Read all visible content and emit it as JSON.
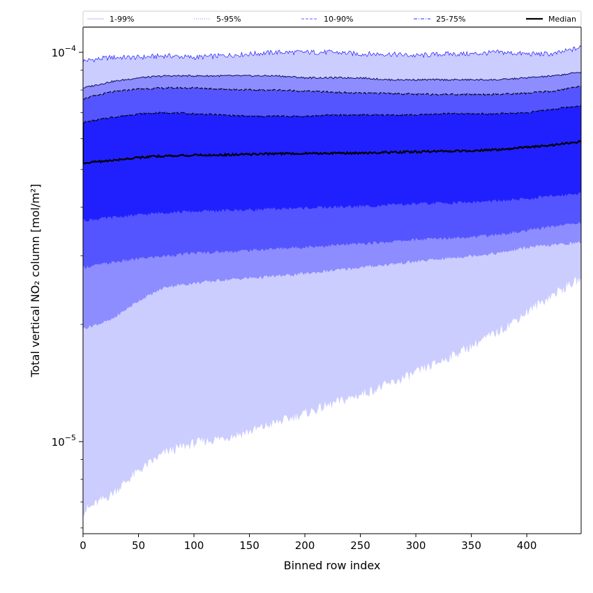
{
  "chart_data": {
    "type": "area",
    "title": "",
    "xlabel": "Binned row index",
    "ylabel": "Total vertical NO₂ column [mol/m²]",
    "yscale": "log",
    "xlim": [
      0,
      449
    ],
    "ylim": [
      5.8e-06,
      0.000116
    ],
    "x_ticks": [
      0,
      50,
      100,
      150,
      200,
      250,
      300,
      350,
      400
    ],
    "x_tick_labels": [
      "0",
      "50",
      "100",
      "150",
      "200",
      "250",
      "300",
      "350",
      "400"
    ],
    "y_ticks": [
      1e-05,
      0.0001
    ],
    "y_tick_labels": [
      {
        "base": "10",
        "exp": "−5"
      },
      {
        "base": "10",
        "exp": "−4"
      }
    ],
    "x": [
      0,
      25,
      50,
      75,
      100,
      125,
      150,
      175,
      200,
      225,
      250,
      275,
      300,
      325,
      350,
      375,
      400,
      425,
      449
    ],
    "bands": [
      {
        "name": "1-99%",
        "fill": "#cccdff",
        "line_color": "#1a1aff",
        "lower": [
          6.6e-06,
          7.3e-06,
          8.4e-06,
          9.4e-06,
          9.9e-06,
          1.02e-05,
          1.06e-05,
          1.12e-05,
          1.18e-05,
          1.25e-05,
          1.32e-05,
          1.4e-05,
          1.5e-05,
          1.62e-05,
          1.76e-05,
          1.92e-05,
          2.15e-05,
          2.4e-05,
          2.62e-05
        ],
        "upper": [
          9.5e-05,
          9.7e-05,
          9.7e-05,
          9.8e-05,
          9.7e-05,
          9.8e-05,
          9.9e-05,
          0.0001,
          0.0001,
          0.0001,
          9.9e-05,
          9.9e-05,
          9.8e-05,
          9.9e-05,
          9.9e-05,
          0.0001,
          9.9e-05,
          9.9e-05,
          0.000103
        ]
      },
      {
        "name": "5-95%",
        "fill": "#8d8dff",
        "line_color": "#1a1a66",
        "lower": [
          1.95e-05,
          2.05e-05,
          2.3e-05,
          2.5e-05,
          2.55e-05,
          2.6e-05,
          2.63e-05,
          2.66e-05,
          2.7e-05,
          2.75e-05,
          2.8e-05,
          2.85e-05,
          2.9e-05,
          2.95e-05,
          3e-05,
          3.05e-05,
          3.15e-05,
          3.2e-05,
          3.25e-05
        ],
        "upper": [
          8.1e-05,
          8.4e-05,
          8.6e-05,
          8.7e-05,
          8.7e-05,
          8.7e-05,
          8.7e-05,
          8.7e-05,
          8.6e-05,
          8.6e-05,
          8.6e-05,
          8.5e-05,
          8.5e-05,
          8.5e-05,
          8.5e-05,
          8.5e-05,
          8.6e-05,
          8.7e-05,
          8.9e-05
        ]
      },
      {
        "name": "10-90%",
        "fill": "#5555ff",
        "line_color": "#000000",
        "lower": [
          2.8e-05,
          2.88e-05,
          2.95e-05,
          3e-05,
          3.05e-05,
          3.07e-05,
          3.1e-05,
          3.13e-05,
          3.16e-05,
          3.19e-05,
          3.22e-05,
          3.26e-05,
          3.3e-05,
          3.33e-05,
          3.36e-05,
          3.4e-05,
          3.48e-05,
          3.58e-05,
          3.65e-05
        ],
        "upper": [
          7.6e-05,
          7.9e-05,
          8.05e-05,
          8.1e-05,
          8.1e-05,
          8.05e-05,
          8e-05,
          8e-05,
          7.95e-05,
          7.9e-05,
          7.85e-05,
          7.85e-05,
          7.8e-05,
          7.8e-05,
          7.8e-05,
          7.8e-05,
          7.85e-05,
          7.95e-05,
          8.2e-05
        ]
      },
      {
        "name": "25-75%",
        "fill": "#2020ff",
        "line_color": "#000000",
        "lower": [
          3.7e-05,
          3.76e-05,
          3.82e-05,
          3.88e-05,
          3.9e-05,
          3.92e-05,
          3.94e-05,
          3.96e-05,
          3.98e-05,
          4e-05,
          4.02e-05,
          4.05e-05,
          4.08e-05,
          4.1e-05,
          4.12e-05,
          4.15e-05,
          4.2e-05,
          4.28e-05,
          4.35e-05
        ],
        "upper": [
          6.6e-05,
          6.8e-05,
          6.95e-05,
          7e-05,
          6.95e-05,
          6.9e-05,
          6.85e-05,
          6.85e-05,
          6.85e-05,
          6.9e-05,
          6.9e-05,
          6.9e-05,
          6.9e-05,
          6.95e-05,
          6.95e-05,
          6.95e-05,
          7e-05,
          7.15e-05,
          7.3e-05
        ]
      }
    ],
    "median": {
      "name": "Median",
      "color": "#000000",
      "values": [
        5.2e-05,
        5.27e-05,
        5.37e-05,
        5.42e-05,
        5.44e-05,
        5.45e-05,
        5.47e-05,
        5.49e-05,
        5.5e-05,
        5.51e-05,
        5.51e-05,
        5.53e-05,
        5.55e-05,
        5.57e-05,
        5.59e-05,
        5.62e-05,
        5.7e-05,
        5.78e-05,
        5.9e-05
      ]
    },
    "legend": {
      "placement": "top",
      "entries": [
        {
          "label": "1-99%",
          "color": "#ccccff",
          "style": "thin"
        },
        {
          "label": "5-95%",
          "color": "#9999ff",
          "style": "dotted"
        },
        {
          "label": "10-90%",
          "color": "#8080ff",
          "style": "dashed"
        },
        {
          "label": "25-75%",
          "color": "#5555ff",
          "style": "dashdot"
        },
        {
          "label": "Median",
          "color": "#000000",
          "style": "solid"
        }
      ]
    }
  }
}
